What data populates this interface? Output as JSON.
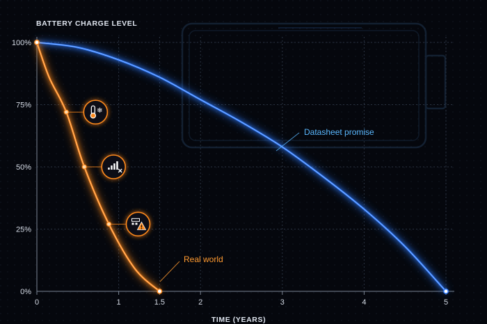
{
  "chart_data": {
    "type": "line",
    "ylabel": "BATTERY CHARGE LEVEL",
    "xlabel": "TIME (YEARS)",
    "x_ticks": [
      {
        "value": 0,
        "label": "0"
      },
      {
        "value": 1,
        "label": "1"
      },
      {
        "value": 1.5,
        "label": "1.5"
      },
      {
        "value": 2,
        "label": "2"
      },
      {
        "value": 3,
        "label": "3"
      },
      {
        "value": 4,
        "label": "4"
      },
      {
        "value": 5,
        "label": "5"
      }
    ],
    "y_ticks": [
      {
        "value": 0,
        "label": "0%"
      },
      {
        "value": 25,
        "label": "25%"
      },
      {
        "value": 50,
        "label": "50%"
      },
      {
        "value": 75,
        "label": "75%"
      },
      {
        "value": 100,
        "label": "100%"
      }
    ],
    "xlim": [
      0,
      5
    ],
    "ylim": [
      0,
      100
    ],
    "grid": true,
    "series": [
      {
        "name": "Datasheet promise",
        "color": "#2f7bff",
        "label_color": "#5ab8ff",
        "x": [
          0,
          0.5,
          1,
          1.5,
          2,
          2.5,
          3,
          3.5,
          4,
          4.5,
          5
        ],
        "y": [
          100,
          98,
          93,
          86,
          77,
          68,
          58,
          46,
          33,
          18,
          0
        ]
      },
      {
        "name": "Real world",
        "color": "#ff8a1c",
        "label_color": "#ff9a30",
        "x": [
          0,
          0.15,
          0.36,
          0.58,
          0.88,
          1.2,
          1.5
        ],
        "y": [
          100,
          86,
          72,
          50,
          27,
          9,
          0
        ]
      }
    ],
    "annotations": [
      {
        "series": "Real world",
        "x": 0.36,
        "y": 72,
        "icon": "thermometer-snowflake-icon"
      },
      {
        "series": "Real world",
        "x": 0.58,
        "y": 50,
        "icon": "signal-bars-x-icon"
      },
      {
        "series": "Real world",
        "x": 0.88,
        "y": 27,
        "icon": "warning-device-icon"
      }
    ],
    "background_decoration": "battery-outline-icon"
  }
}
